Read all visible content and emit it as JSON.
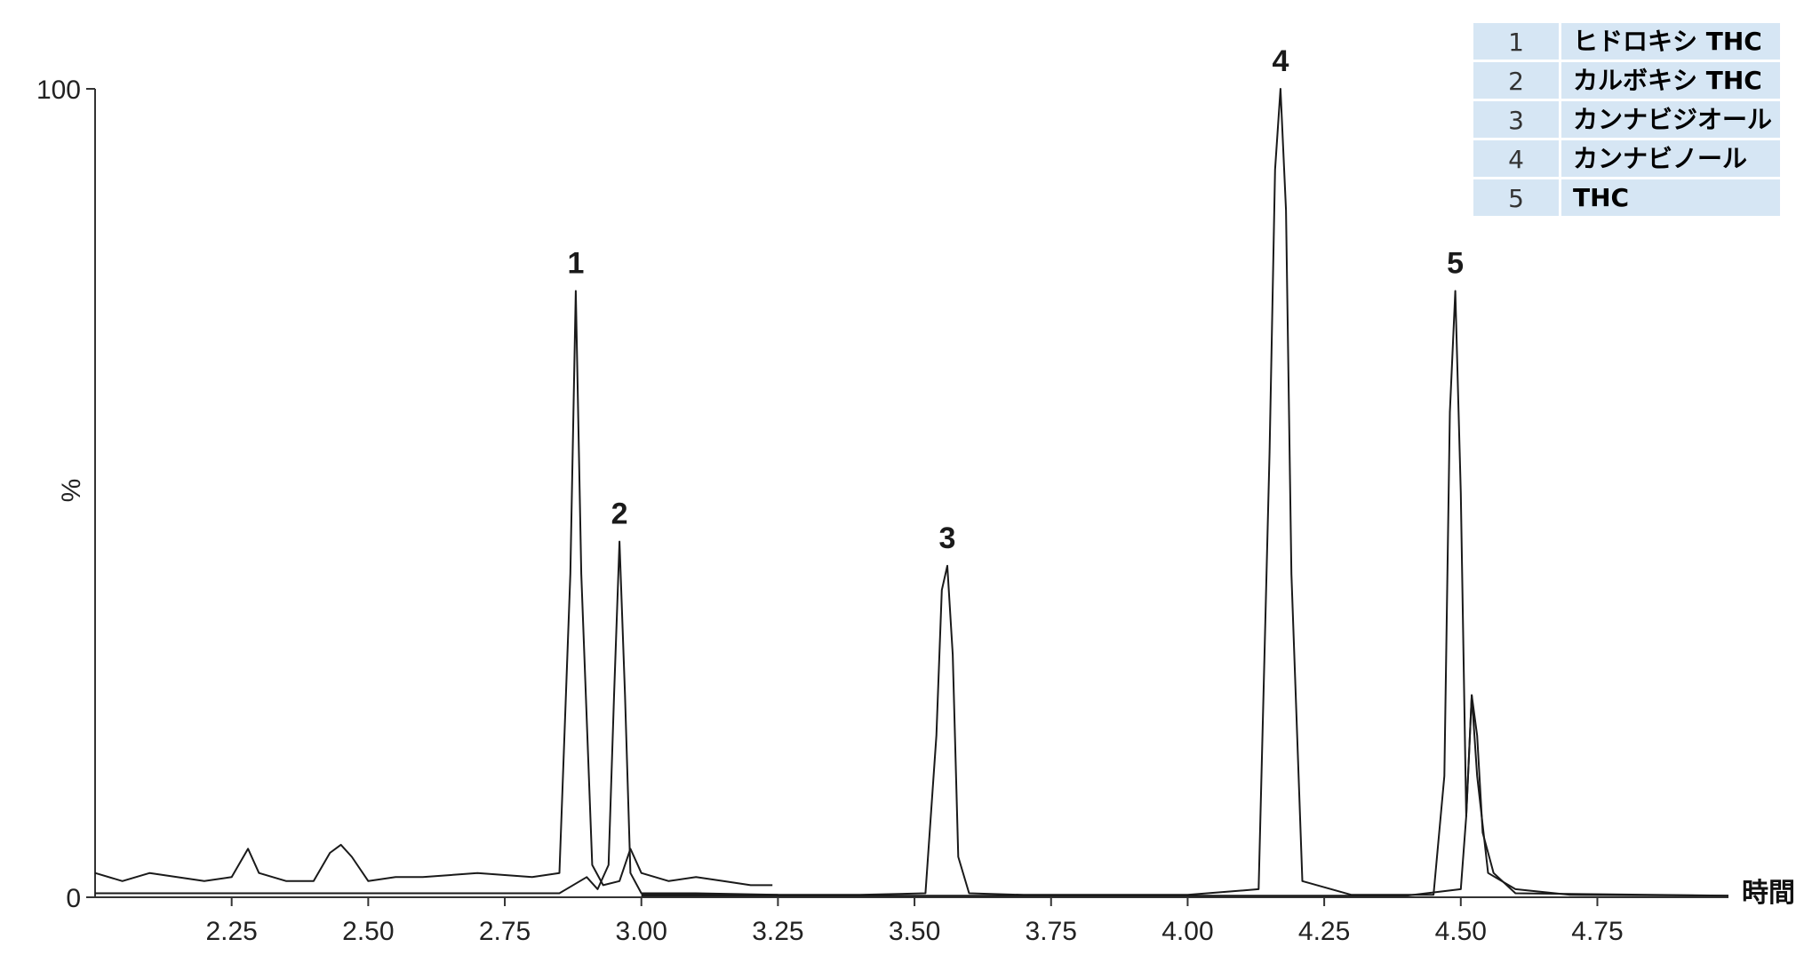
{
  "chart_data": {
    "type": "line",
    "title": "",
    "xlabel": "時間",
    "ylabel": "%",
    "xlim": [
      2.0,
      4.99
    ],
    "ylim": [
      0,
      100
    ],
    "x_ticks": [
      "2.25",
      "2.50",
      "2.75",
      "3.00",
      "3.25",
      "3.50",
      "3.75",
      "4.00",
      "4.25",
      "4.50",
      "4.75"
    ],
    "y_ticks": [
      "0",
      "100"
    ],
    "grid": false,
    "peaks": [
      {
        "label": "1",
        "x": 2.88,
        "y": 75
      },
      {
        "label": "2",
        "x": 2.96,
        "y": 44
      },
      {
        "label": "3",
        "x": 3.56,
        "y": 41
      },
      {
        "label": "4",
        "x": 4.17,
        "y": 100
      },
      {
        "label": "5",
        "x": 4.49,
        "y": 75
      }
    ],
    "series": [
      {
        "values_note": "trace with peaks 1 and 3 and noisy early baseline (2.00-3.24)",
        "x": [
          2.0,
          2.05,
          2.1,
          2.15,
          2.2,
          2.25,
          2.28,
          2.3,
          2.35,
          2.4,
          2.43,
          2.45,
          2.47,
          2.5,
          2.55,
          2.6,
          2.7,
          2.8,
          2.85,
          2.87,
          2.88,
          2.89,
          2.91,
          2.93,
          2.96,
          2.98,
          3.0,
          3.05,
          3.1,
          3.15,
          3.2,
          3.24
        ],
        "y": [
          3,
          2,
          3,
          2.5,
          2,
          2.5,
          6,
          3,
          2,
          2,
          5.5,
          6.5,
          5,
          2,
          2.5,
          2.5,
          3,
          2.5,
          3,
          40,
          75,
          40,
          4,
          1.5,
          2,
          6,
          3,
          2,
          2.5,
          2,
          1.5,
          1.5
        ]
      },
      {
        "values_note": "trace with peak 2",
        "x": [
          2.0,
          2.85,
          2.9,
          2.92,
          2.94,
          2.95,
          2.96,
          2.97,
          2.98,
          3.0,
          3.1,
          3.25
        ],
        "y": [
          0.5,
          0.5,
          2.5,
          1,
          4,
          25,
          44,
          25,
          3,
          0.5,
          0.5,
          0.3
        ]
      },
      {
        "values_note": "main trace with peaks 3, 4 and 5",
        "x": [
          3.0,
          3.4,
          3.52,
          3.54,
          3.55,
          3.56,
          3.57,
          3.58,
          3.6,
          3.7,
          4.0,
          4.13,
          4.15,
          4.16,
          4.17,
          4.18,
          4.19,
          4.21,
          4.3,
          4.45,
          4.47,
          4.48,
          4.49,
          4.5,
          4.51,
          4.52,
          4.53,
          4.55,
          4.6,
          4.7,
          4.99
        ],
        "y": [
          0.3,
          0.3,
          0.5,
          20,
          38,
          41,
          30,
          5,
          0.5,
          0.3,
          0.3,
          1,
          55,
          90,
          100,
          85,
          40,
          2,
          0.3,
          0.3,
          15,
          60,
          75,
          50,
          10,
          25,
          15,
          3,
          1,
          0.3,
          0.2
        ]
      },
      {
        "values_note": "trace with secondary peak near 4.52",
        "x": [
          3.0,
          4.4,
          4.5,
          4.51,
          4.52,
          4.53,
          4.54,
          4.56,
          4.6,
          4.99
        ],
        "y": [
          0.2,
          0.2,
          1,
          10,
          25,
          20,
          8,
          3,
          0.5,
          0.2
        ]
      }
    ],
    "legend": [
      {
        "num": "1",
        "name": "ヒドロキシ THC"
      },
      {
        "num": "2",
        "name": "カルボキシ THC"
      },
      {
        "num": "3",
        "name": "カンナビジオール"
      },
      {
        "num": "4",
        "name": "カンナビノール"
      },
      {
        "num": "5",
        "name": "THC"
      }
    ]
  },
  "colors": {
    "line": "#1a1a1a",
    "legend_bg": "#d6e6f4",
    "legend_border": "#ffffff"
  }
}
